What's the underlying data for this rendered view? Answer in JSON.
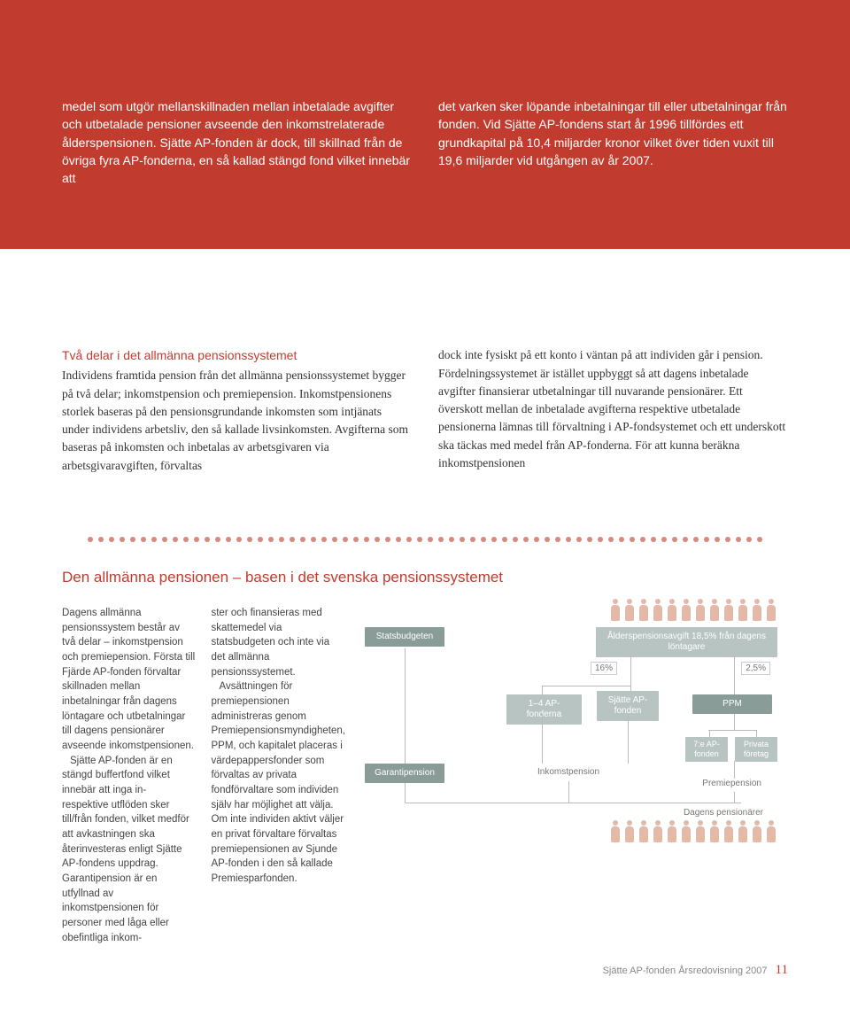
{
  "colors": {
    "accent": "#c13c2e",
    "dot": "#d8887d",
    "box_light": "#b7c4c1",
    "box_dark": "#8a9c97",
    "people": "#e3b9a8",
    "text": "#333333",
    "muted": "#777777"
  },
  "top": {
    "left": "medel som utgör mellanskillnaden mellan inbetalade avgifter och utbetalade pensioner avseende den inkomstrelaterade ålderspensionen. Sjätte AP-fonden är dock, till skillnad från de övriga fyra AP-fonderna, en så kallad stängd fond vilket innebär att",
    "right": "det varken sker löpande inbetalningar till eller utbetalningar från fonden. Vid Sjätte AP-fondens start år 1996 tillfördes ett grundkapital på 10,4 miljarder kronor vilket över tiden vuxit till 19,6 miljarder vid utgången av år 2007."
  },
  "mid": {
    "heading": "Två delar i det allmänna pensionssystemet",
    "left": "Individens framtida pension från det allmänna pensionssystemet bygger på två delar; inkomstpension och premiepension. Inkomstpensionens storlek baseras på den pensionsgrundande inkomsten som intjänats under individens arbetsliv, den så kallade livsinkomsten. Avgifterna som baseras på inkomsten och inbetalas av arbetsgivaren via arbetsgivaravgiften, förvaltas",
    "right": "dock inte fysiskt på ett konto i väntan på att individen går i pension. Fördelningssystemet är istället uppbyggt så att dagens inbetalade avgifter finansierar utbetalningar till nuvarande pensionärer. Ett överskott mellan de inbetalade avgifterna respektive utbetalade pensionerna lämnas till förvaltning i AP-fondsystemet och ett underskott ska täckas med medel från AP-fonderna. För att kunna beräkna inkomstpensionen"
  },
  "bottom": {
    "title": "Den allmänna pensionen – basen i det svenska pensionssystemet",
    "p1": "Dagens allmänna pensionssystem består av två delar – inkomstpension och premiepension. Första till Fjärde AP-fonden förvaltar skillnaden mellan inbetalningar från dagens löntagare och utbetalningar till dagens pensionärer avseende inkomstpensionen.",
    "p2": "Sjätte AP-fonden är en stängd buffertfond vilket innebär att inga in- respektive utflöden sker till/från fonden, vilket medför att avkastningen ska återinvesteras enligt Sjätte AP-fondens uppdrag. Garantipension är en utfyllnad av inkomstpensionen för personer med låga eller obefintliga inkom-",
    "p3": "ster och finansieras med skattemedel via statsbudgeten och inte via det allmänna pensionssystemet.",
    "p4": "Avsättningen för premiepensionen administreras genom Premiepensionsmyndigheten, PPM, och kapitalet placeras i värdepappersfonder som förvaltas av privata fondförvaltare som individen själv har möjlighet att välja. Om inte individen aktivt väljer en privat förvaltare förvaltas premiepensionen av Sjunde AP-fonden i den så kallade Premiesparfonden."
  },
  "diagram": {
    "type": "flowchart",
    "top_label": "Ålderspensionsavgift 18,5% från dagens löntagare",
    "pct_left": "16%",
    "pct_right": "2,5%",
    "box_statsbudgeten": "Statsbudgeten",
    "box_garantipension": "Garantipension",
    "box_14": "1–4 AP-fonderna",
    "box_sjatte": "Sjätte AP-fonden",
    "box_ppm": "PPM",
    "box_7e": "7:e AP-fonden",
    "box_privata": "Privata företag",
    "label_inkomst": "Inkomstpension",
    "label_premie": "Premiepension",
    "label_dagens": "Dagens pensionärer",
    "people_top_count": 12,
    "people_bottom_count": 12
  },
  "footer": {
    "text": "Sjätte AP-fonden Årsredovisning 2007",
    "page": "11"
  }
}
